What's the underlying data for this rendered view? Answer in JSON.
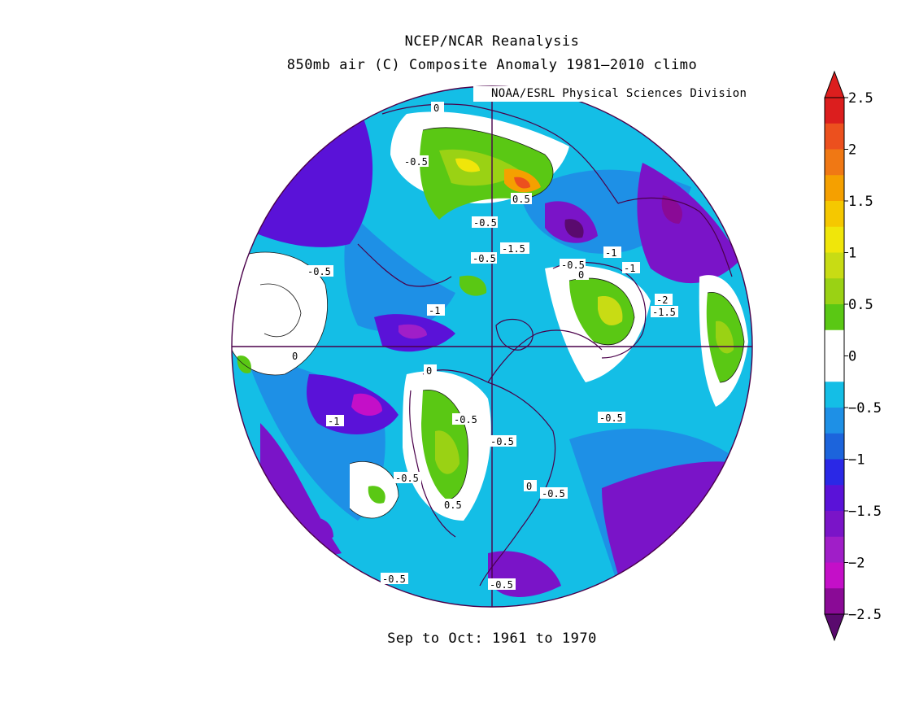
{
  "title_line1": "NCEP/NCAR Reanalysis",
  "title_line2": "850mb air (C) Composite Anomaly 1981–2010 climo",
  "credit": "NOAA/ESRL Physical Sciences Division",
  "footer": "Sep to Oct: 1961 to 1970",
  "colorbar": {
    "levels": [
      -2.5,
      -2.25,
      -2,
      -1.75,
      -1.5,
      -1.25,
      -1,
      -0.75,
      -0.5,
      -0.25,
      0,
      0.25,
      0.5,
      0.75,
      1,
      1.25,
      1.5,
      1.75,
      2,
      2.25,
      2.5
    ],
    "tick_labels": [
      "2.5",
      "2",
      "1.5",
      "1",
      "0.5",
      "0",
      "−0.5",
      "−1",
      "−1.5",
      "−2",
      "−2.5"
    ],
    "colors": [
      "#5a0a6e",
      "#8a0a96",
      "#c40fc8",
      "#a01ec8",
      "#7a14c8",
      "#5a12d8",
      "#2a28e6",
      "#1c64dc",
      "#1e90e6",
      "#14bee6",
      "#ffffff",
      "#ffffff",
      "#5ac814",
      "#9ad214",
      "#c8dc14",
      "#f0e60a",
      "#f5c800",
      "#f5a000",
      "#f07814",
      "#ec501e",
      "#dc1e1e"
    ]
  },
  "contour_labels": [
    "0",
    "-0.5",
    "-0.5",
    "0.5",
    "-0.5",
    "-1.5",
    "-0.5",
    "-1",
    "-1",
    "-0.5",
    "0",
    "-2",
    "-1.5",
    "-0.5",
    "-1",
    "0",
    "0",
    "-0.5",
    "-1",
    "-0.5",
    "-0.5",
    "0.5",
    "0",
    "-0.5",
    "-0.5",
    "-0.5"
  ],
  "map": {
    "projection": "north polar stereographic",
    "background": "#14bee6"
  }
}
